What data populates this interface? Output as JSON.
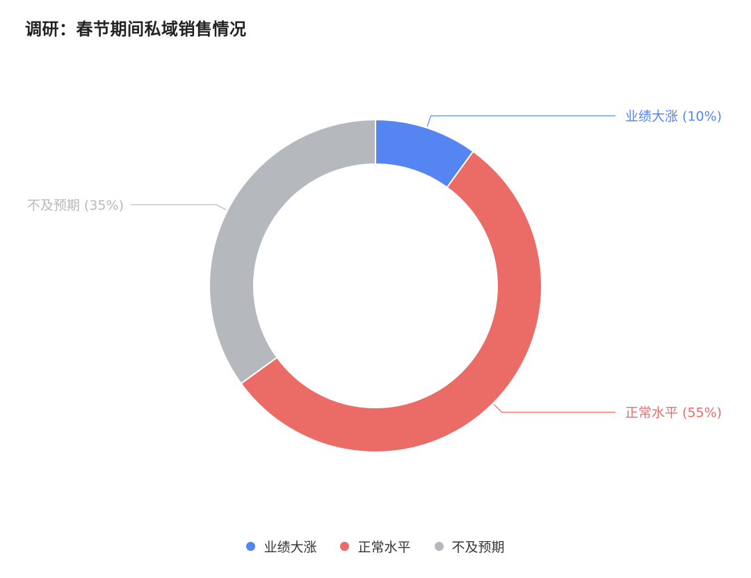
{
  "title": "调研：春节期间私域销售情况",
  "chart_data": {
    "type": "pie",
    "title": "调研：春节期间私域销售情况",
    "donut": true,
    "legend_position": "bottom",
    "series": [
      {
        "name": "业绩大涨",
        "value": 10,
        "label": "业绩大涨 (10%)",
        "color": "#5585F0"
      },
      {
        "name": "正常水平",
        "value": 55,
        "label": "正常水平 (55%)",
        "color": "#EB6B66"
      },
      {
        "name": "不及预期",
        "value": 35,
        "label": "不及预期 (35%)",
        "color": "#B5B8BC"
      }
    ]
  }
}
